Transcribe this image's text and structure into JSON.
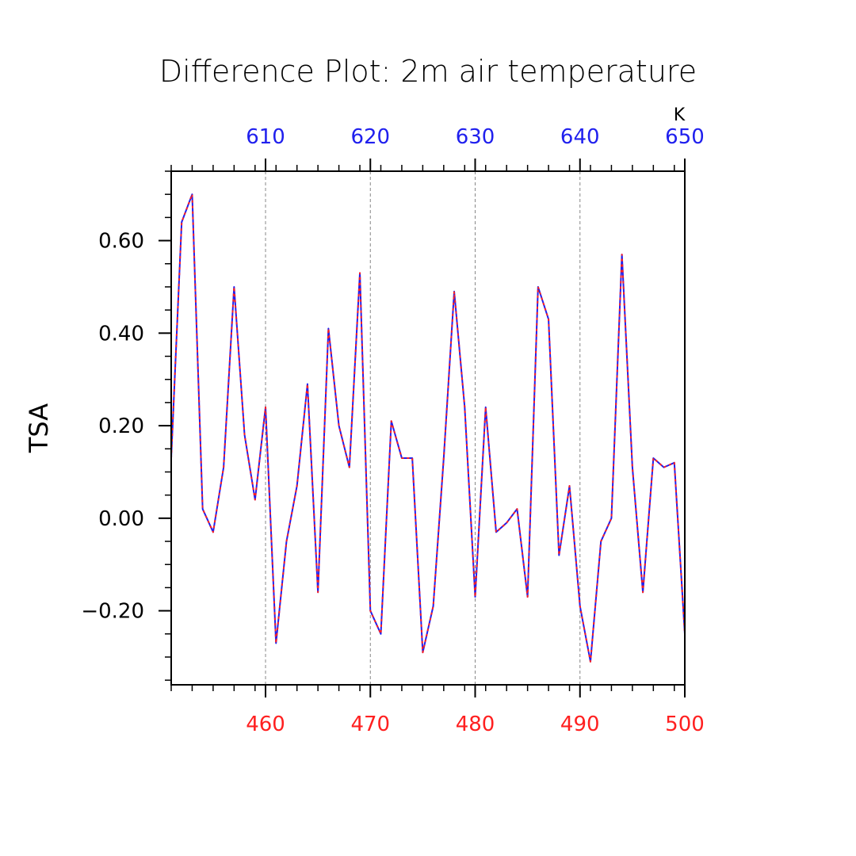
{
  "chart_data": {
    "type": "line",
    "title": "Difference Plot: 2m air temperature",
    "ylabel": "TSA",
    "top_axis_unit": "K",
    "xlim": [
      451,
      500
    ],
    "top_xlim": [
      601,
      650
    ],
    "ylim": [
      -0.36,
      0.75
    ],
    "x_ticks_bottom": [
      460,
      470,
      480,
      490,
      500
    ],
    "x_ticks_top": [
      610,
      620,
      630,
      640,
      650
    ],
    "y_ticks": [
      -0.2,
      0.0,
      0.2,
      0.4,
      0.6
    ],
    "y_tick_labels": [
      "−0.20",
      "0.00",
      "0.20",
      "0.40",
      "0.60"
    ],
    "vertical_grid_at": [
      460,
      470,
      480,
      490
    ],
    "bottom_axis_color": "#ff2020",
    "top_axis_color": "#2020ee",
    "series": [
      {
        "color": "#2020ee",
        "dash_color": "#ff2020",
        "x": [
          451,
          452,
          453,
          454,
          455,
          456,
          457,
          458,
          459,
          460,
          461,
          462,
          463,
          464,
          465,
          466,
          467,
          468,
          469,
          470,
          471,
          472,
          473,
          474,
          475,
          476,
          477,
          478,
          479,
          480,
          481,
          482,
          483,
          484,
          485,
          486,
          487,
          488,
          489,
          490,
          491,
          492,
          493,
          494,
          495,
          496,
          497,
          498,
          499,
          500
        ],
        "values": [
          0.13,
          0.64,
          0.7,
          0.02,
          -0.03,
          0.11,
          0.5,
          0.18,
          0.04,
          0.24,
          -0.27,
          -0.05,
          0.07,
          0.29,
          -0.16,
          0.41,
          0.2,
          0.11,
          0.53,
          -0.2,
          -0.25,
          0.21,
          0.13,
          0.13,
          -0.29,
          -0.19,
          0.13,
          0.49,
          0.24,
          -0.17,
          0.24,
          -0.03,
          -0.01,
          0.02,
          -0.17,
          0.5,
          0.43,
          -0.08,
          0.07,
          -0.19,
          -0.31,
          -0.05,
          0.0,
          0.57,
          0.11,
          -0.16,
          0.13,
          0.11,
          0.12,
          -0.25
        ]
      }
    ]
  }
}
